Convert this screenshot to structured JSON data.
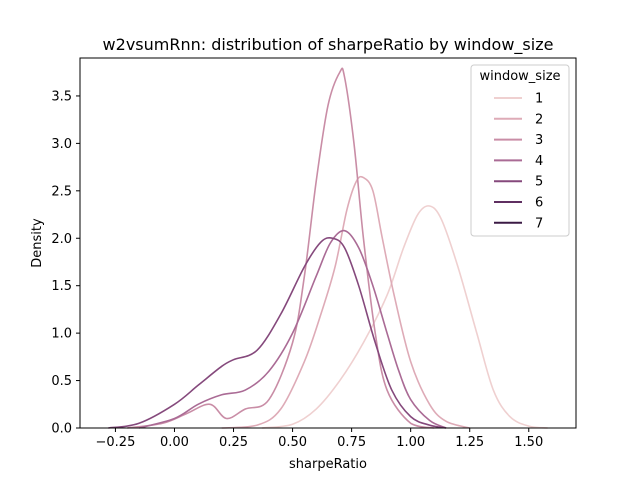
{
  "chart_data": {
    "type": "line",
    "title": "w2vsumRnn: distribution of sharpeRatio by window_size",
    "xlabel": "sharpeRatio",
    "ylabel": "Density",
    "xlim": [
      -0.4,
      1.7
    ],
    "ylim": [
      0,
      3.9
    ],
    "xticks": [
      -0.25,
      0.0,
      0.25,
      0.5,
      0.75,
      1.0,
      1.25,
      1.5
    ],
    "xtick_labels": [
      "−0.25",
      "0.00",
      "0.25",
      "0.50",
      "0.75",
      "1.00",
      "1.25",
      "1.50"
    ],
    "yticks": [
      0.0,
      0.5,
      1.0,
      1.5,
      2.0,
      2.5,
      3.0,
      3.5
    ],
    "ytick_labels": [
      "0.0",
      "0.5",
      "1.0",
      "1.5",
      "2.0",
      "2.5",
      "3.0",
      "3.5"
    ],
    "grid": false,
    "legend": {
      "title": "window_size",
      "placement": "top-right"
    },
    "series": [
      {
        "name": "1",
        "color": "#efd0d0",
        "x": [
          0.37,
          0.5,
          0.6,
          0.7,
          0.8,
          0.9,
          0.97,
          1.03,
          1.08,
          1.13,
          1.2,
          1.28,
          1.35,
          1.42,
          1.5,
          1.58
        ],
        "y": [
          0.0,
          0.04,
          0.2,
          0.5,
          0.9,
          1.4,
          1.9,
          2.25,
          2.34,
          2.2,
          1.7,
          1.0,
          0.4,
          0.12,
          0.02,
          0.0
        ]
      },
      {
        "name": "2",
        "color": "#deabb7",
        "x": [
          0.2,
          0.35,
          0.45,
          0.55,
          0.62,
          0.68,
          0.73,
          0.77,
          0.8,
          0.84,
          0.88,
          0.93,
          1.0,
          1.08,
          1.15,
          1.25
        ],
        "y": [
          0.0,
          0.03,
          0.2,
          0.7,
          1.2,
          1.7,
          2.3,
          2.6,
          2.64,
          2.5,
          2.0,
          1.4,
          0.7,
          0.25,
          0.07,
          0.0
        ]
      },
      {
        "name": "3",
        "color": "#c98da6",
        "x": [
          -0.2,
          -0.05,
          0.05,
          0.15,
          0.22,
          0.3,
          0.4,
          0.5,
          0.55,
          0.6,
          0.65,
          0.7,
          0.72,
          0.76,
          0.8,
          0.85,
          0.9,
          1.0,
          1.1
        ],
        "y": [
          0.0,
          0.05,
          0.15,
          0.25,
          0.1,
          0.2,
          0.3,
          0.9,
          1.6,
          2.6,
          3.4,
          3.75,
          3.7,
          3.0,
          2.0,
          1.0,
          0.4,
          0.05,
          0.0
        ]
      },
      {
        "name": "4",
        "color": "#aa6b95",
        "x": [
          -0.15,
          0.0,
          0.1,
          0.2,
          0.3,
          0.4,
          0.5,
          0.6,
          0.66,
          0.72,
          0.78,
          0.84,
          0.9,
          0.95,
          1.0,
          1.08,
          1.15
        ],
        "y": [
          0.0,
          0.1,
          0.25,
          0.35,
          0.4,
          0.6,
          1.0,
          1.6,
          1.95,
          2.08,
          1.9,
          1.5,
          1.0,
          0.6,
          0.3,
          0.08,
          0.0
        ]
      },
      {
        "name": "5",
        "color": "#85497c",
        "x": [
          -0.28,
          -0.15,
          0.0,
          0.1,
          0.2,
          0.25,
          0.35,
          0.45,
          0.55,
          0.62,
          0.67,
          0.72,
          0.78,
          0.85,
          0.92,
          1.0,
          1.08,
          1.15
        ],
        "y": [
          0.0,
          0.05,
          0.25,
          0.45,
          0.65,
          0.72,
          0.82,
          1.2,
          1.7,
          1.96,
          2.0,
          1.9,
          1.5,
          0.9,
          0.4,
          0.12,
          0.03,
          0.0
        ]
      },
      {
        "name": "6",
        "color": "#5f2f61",
        "x": [],
        "y": []
      },
      {
        "name": "7",
        "color": "#3b1a45",
        "x": [],
        "y": []
      }
    ]
  }
}
